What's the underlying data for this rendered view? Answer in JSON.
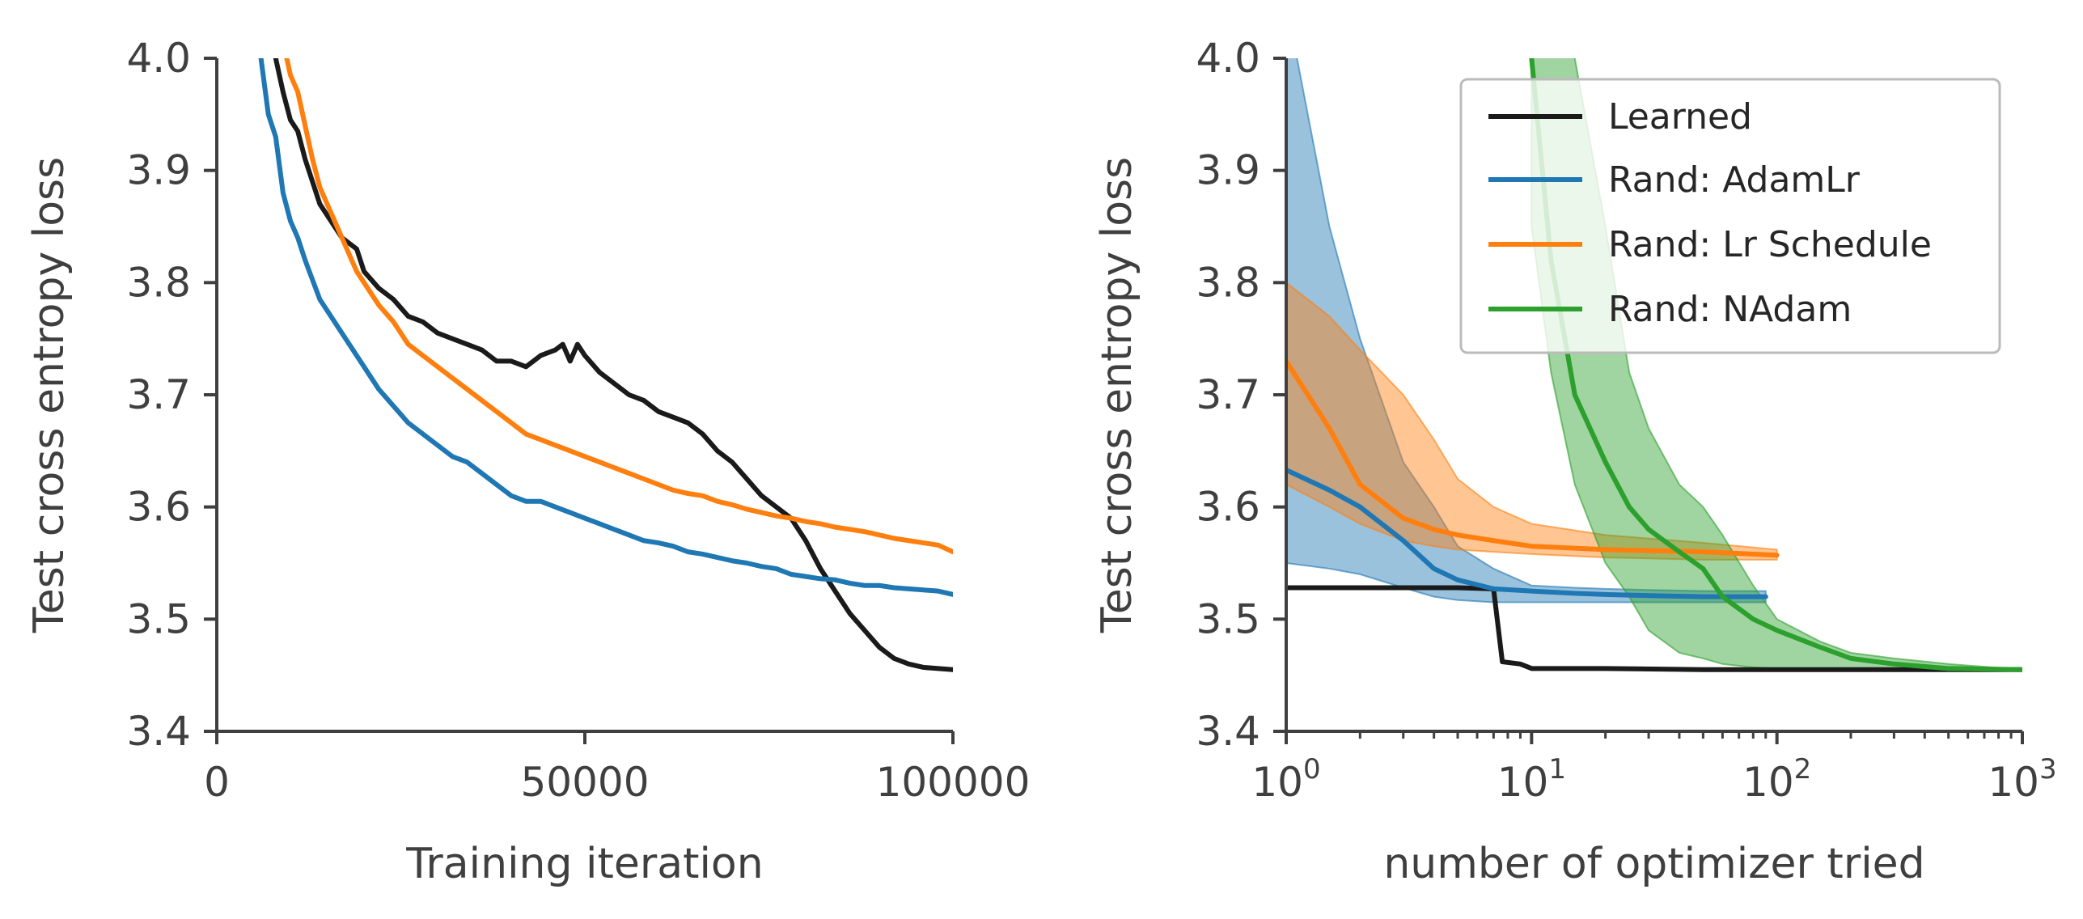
{
  "chart_data": [
    {
      "type": "line",
      "xlabel": "Training iteration",
      "ylabel": "Test cross entropy loss",
      "xlim": [
        0,
        100000
      ],
      "ylim": [
        3.4,
        4.0
      ],
      "xscale": "linear",
      "xticks": [
        0,
        50000,
        100000
      ],
      "xtick_labels": [
        "0",
        "50000",
        "100000"
      ],
      "yticks": [
        3.4,
        3.5,
        3.6,
        3.7,
        3.8,
        3.9,
        4.0
      ],
      "ytick_labels": [
        "3.4",
        "3.5",
        "3.6",
        "3.7",
        "3.8",
        "3.9",
        "4.0"
      ],
      "grid": false,
      "series": [
        {
          "color": "#1a1a1a",
          "x": [
            8000,
            9000,
            10000,
            11000,
            12000,
            13000,
            14000,
            15000,
            17000,
            19000,
            20000,
            22000,
            24000,
            26000,
            28000,
            30000,
            32000,
            34000,
            36000,
            38000,
            40000,
            42000,
            44000,
            46000,
            47000,
            48000,
            49000,
            50000,
            52000,
            54000,
            56000,
            58000,
            60000,
            62000,
            64000,
            66000,
            68000,
            70000,
            72000,
            74000,
            76000,
            78000,
            80000,
            82000,
            84000,
            86000,
            88000,
            90000,
            92000,
            94000,
            96000,
            98000,
            100000
          ],
          "y": [
            4.0,
            3.97,
            3.945,
            3.935,
            3.91,
            3.89,
            3.87,
            3.86,
            3.84,
            3.83,
            3.81,
            3.795,
            3.785,
            3.77,
            3.765,
            3.755,
            3.75,
            3.745,
            3.74,
            3.73,
            3.73,
            3.725,
            3.735,
            3.74,
            3.745,
            3.73,
            3.745,
            3.735,
            3.72,
            3.71,
            3.7,
            3.695,
            3.685,
            3.68,
            3.675,
            3.665,
            3.65,
            3.64,
            3.625,
            3.61,
            3.6,
            3.59,
            3.57,
            3.545,
            3.525,
            3.505,
            3.49,
            3.475,
            3.465,
            3.46,
            3.457,
            3.456,
            3.455
          ]
        },
        {
          "color": "#1f77b4",
          "x": [
            6000,
            7000,
            8000,
            9000,
            10000,
            11000,
            12000,
            14000,
            16000,
            18000,
            20000,
            22000,
            24000,
            26000,
            28000,
            30000,
            32000,
            34000,
            36000,
            38000,
            40000,
            42000,
            44000,
            46000,
            48000,
            50000,
            52000,
            54000,
            56000,
            58000,
            60000,
            62000,
            64000,
            66000,
            68000,
            70000,
            72000,
            74000,
            76000,
            78000,
            80000,
            82000,
            84000,
            86000,
            88000,
            90000,
            92000,
            94000,
            96000,
            98000,
            100000
          ],
          "y": [
            4.0,
            3.95,
            3.93,
            3.88,
            3.855,
            3.84,
            3.82,
            3.785,
            3.765,
            3.745,
            3.725,
            3.705,
            3.69,
            3.675,
            3.665,
            3.655,
            3.645,
            3.64,
            3.63,
            3.62,
            3.61,
            3.605,
            3.605,
            3.6,
            3.595,
            3.59,
            3.585,
            3.58,
            3.575,
            3.57,
            3.568,
            3.565,
            3.56,
            3.558,
            3.555,
            3.552,
            3.55,
            3.547,
            3.545,
            3.54,
            3.538,
            3.536,
            3.535,
            3.532,
            3.53,
            3.53,
            3.528,
            3.527,
            3.526,
            3.525,
            3.522
          ]
        },
        {
          "color": "#ff7f0e",
          "x": [
            9500,
            10000,
            11000,
            12000,
            13000,
            14000,
            15000,
            16000,
            17000,
            18000,
            19000,
            20000,
            22000,
            24000,
            26000,
            28000,
            30000,
            32000,
            34000,
            36000,
            38000,
            40000,
            42000,
            44000,
            46000,
            48000,
            50000,
            52000,
            54000,
            56000,
            58000,
            60000,
            62000,
            64000,
            66000,
            68000,
            70000,
            72000,
            74000,
            76000,
            78000,
            80000,
            82000,
            84000,
            86000,
            88000,
            90000,
            92000,
            94000,
            96000,
            98000,
            100000
          ],
          "y": [
            4.0,
            3.985,
            3.97,
            3.94,
            3.91,
            3.885,
            3.87,
            3.855,
            3.84,
            3.825,
            3.81,
            3.8,
            3.78,
            3.765,
            3.745,
            3.735,
            3.725,
            3.715,
            3.705,
            3.695,
            3.685,
            3.675,
            3.665,
            3.66,
            3.655,
            3.65,
            3.645,
            3.64,
            3.635,
            3.63,
            3.625,
            3.62,
            3.615,
            3.612,
            3.61,
            3.605,
            3.602,
            3.598,
            3.595,
            3.592,
            3.59,
            3.587,
            3.585,
            3.582,
            3.58,
            3.578,
            3.575,
            3.572,
            3.57,
            3.568,
            3.566,
            3.56
          ]
        }
      ]
    },
    {
      "type": "line",
      "xlabel": "number of optimizer tried",
      "ylabel": "Test cross entropy loss",
      "xlim": [
        1,
        1000
      ],
      "ylim": [
        3.4,
        4.0
      ],
      "xscale": "log",
      "xticks": [
        1,
        10,
        100,
        1000
      ],
      "xtick_labels": [
        {
          "base": "10",
          "exp": "0"
        },
        {
          "base": "10",
          "exp": "1"
        },
        {
          "base": "10",
          "exp": "2"
        },
        {
          "base": "10",
          "exp": "3"
        }
      ],
      "yticks": [
        3.4,
        3.5,
        3.6,
        3.7,
        3.8,
        3.9,
        4.0
      ],
      "ytick_labels": [
        "3.4",
        "3.5",
        "3.6",
        "3.7",
        "3.8",
        "3.9",
        "4.0"
      ],
      "grid": false,
      "legend_position": "top-right",
      "series": [
        {
          "name": "Learned",
          "color": "#1a1a1a",
          "x": [
            1,
            2,
            3,
            5,
            7,
            7.6,
            9,
            10,
            20,
            50,
            100,
            300,
            1000
          ],
          "y": [
            3.528,
            3.528,
            3.528,
            3.528,
            3.527,
            3.462,
            3.46,
            3.456,
            3.456,
            3.455,
            3.455,
            3.455,
            3.455
          ]
        },
        {
          "name": "Rand: AdamLr",
          "color": "#1f77b4",
          "x": [
            1,
            1.5,
            2,
            3,
            4,
            5,
            7,
            10,
            15,
            20,
            30,
            50,
            90
          ],
          "y": [
            3.633,
            3.615,
            3.6,
            3.57,
            3.545,
            3.535,
            3.527,
            3.525,
            3.523,
            3.522,
            3.521,
            3.52,
            3.52
          ],
          "band_upper": [
            4.05,
            3.85,
            3.75,
            3.64,
            3.6,
            3.565,
            3.545,
            3.53,
            3.528,
            3.527,
            3.526,
            3.525,
            3.525
          ],
          "band_lower": [
            3.55,
            3.545,
            3.54,
            3.528,
            3.52,
            3.517,
            3.515,
            3.515,
            3.515,
            3.515,
            3.515,
            3.515,
            3.515
          ]
        },
        {
          "name": "Rand: Lr Schedule",
          "color": "#ff7f0e",
          "x": [
            1,
            1.5,
            2,
            3,
            4,
            5,
            7,
            10,
            20,
            50,
            100
          ],
          "y": [
            3.73,
            3.67,
            3.62,
            3.59,
            3.58,
            3.575,
            3.57,
            3.565,
            3.562,
            3.56,
            3.557
          ],
          "band_upper": [
            3.8,
            3.77,
            3.74,
            3.7,
            3.66,
            3.625,
            3.6,
            3.585,
            3.575,
            3.568,
            3.562
          ],
          "band_lower": [
            3.62,
            3.6,
            3.585,
            3.57,
            3.565,
            3.562,
            3.56,
            3.558,
            3.555,
            3.553,
            3.553
          ]
        },
        {
          "name": "Rand: NAdam",
          "color": "#2ca02c",
          "x": [
            10,
            12,
            15,
            20,
            25,
            30,
            40,
            50,
            60,
            80,
            100,
            150,
            200,
            300,
            500,
            1000
          ],
          "y": [
            4.0,
            3.82,
            3.7,
            3.64,
            3.6,
            3.58,
            3.56,
            3.545,
            3.52,
            3.5,
            3.49,
            3.475,
            3.465,
            3.46,
            3.456,
            3.455
          ],
          "band_upper": [
            4.05,
            4.05,
            4.0,
            3.85,
            3.72,
            3.67,
            3.62,
            3.6,
            3.575,
            3.53,
            3.5,
            3.48,
            3.47,
            3.465,
            3.46,
            3.455
          ],
          "band_lower": [
            3.85,
            3.72,
            3.62,
            3.55,
            3.52,
            3.49,
            3.47,
            3.465,
            3.46,
            3.457,
            3.456,
            3.455,
            3.455,
            3.455,
            3.455,
            3.455
          ]
        }
      ]
    }
  ]
}
